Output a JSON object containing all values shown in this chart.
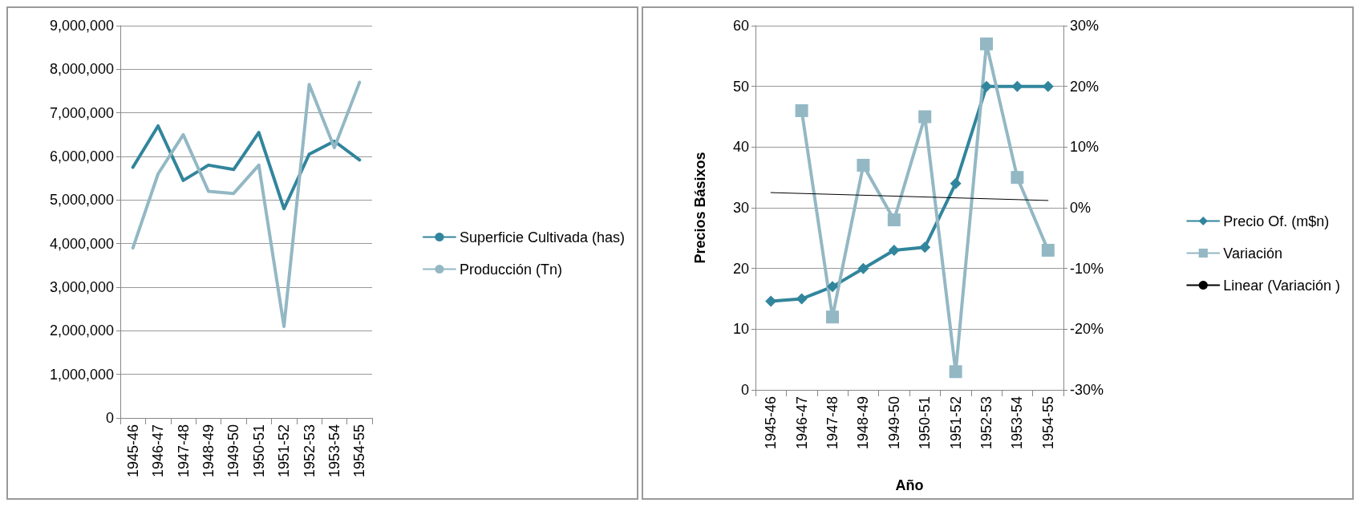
{
  "chart_data": [
    {
      "type": "line",
      "categories": [
        "1945-46",
        "1946-47",
        "1947-48",
        "1948-49",
        "1949-50",
        "1950-51",
        "1951-52",
        "1952-53",
        "1953-54",
        "1954-55"
      ],
      "series": [
        {
          "name": "Superficie Cultivada (has)",
          "color": "#31859c",
          "values": [
            5750000,
            6700000,
            5450000,
            5800000,
            5700000,
            6550000,
            4800000,
            6050000,
            6350000,
            5920000
          ]
        },
        {
          "name": "Producción (Tn)",
          "color": "#93b8c4",
          "values": [
            3900000,
            5600000,
            6500000,
            5200000,
            5150000,
            5800000,
            2100000,
            7650000,
            6200000,
            7700000
          ]
        }
      ],
      "ylim": [
        0,
        9000000
      ],
      "yticks": [
        {
          "value": 0,
          "label": "0"
        },
        {
          "value": 1000000,
          "label": "1,000,000"
        },
        {
          "value": 2000000,
          "label": "2,000,000"
        },
        {
          "value": 3000000,
          "label": "3,000,000"
        },
        {
          "value": 4000000,
          "label": "4,000,000"
        },
        {
          "value": 5000000,
          "label": "5,000,000"
        },
        {
          "value": 6000000,
          "label": "6,000,000"
        },
        {
          "value": 7000000,
          "label": "7,000,000"
        },
        {
          "value": 8000000,
          "label": "8,000,000"
        },
        {
          "value": 9000000,
          "label": "9,000,000"
        }
      ],
      "grid": "y",
      "legend": "right",
      "marker": "none"
    },
    {
      "type": "line",
      "xlabel": "Año",
      "ylabel": "Precios Básixos",
      "categories": [
        "1945-46",
        "1946-47",
        "1947-48",
        "1948-49",
        "1949-50",
        "1950-51",
        "1951-52",
        "1952-53",
        "1953-54",
        "1954-55"
      ],
      "series": [
        {
          "name": "Precio Of. (m$n)",
          "color": "#31859c",
          "marker": "diamond",
          "values": [
            14.6,
            15,
            17,
            20,
            23,
            23.5,
            34,
            50,
            50,
            50
          ]
        },
        {
          "name": "Variación",
          "color": "#93b8c4",
          "marker": "square",
          "axis": "y2",
          "values": [
            null,
            16,
            -18,
            7,
            -2,
            15,
            -27,
            27,
            5,
            -7
          ]
        },
        {
          "name": "Linear (Variación )",
          "color": "#000000",
          "marker": "none",
          "axis": "y2",
          "x": [
            "1945-46",
            "1954-55"
          ],
          "values": [
            2.5,
            1.2
          ]
        }
      ],
      "ylim": [
        0,
        60
      ],
      "yticks": [
        0,
        10,
        20,
        30,
        40,
        50,
        60
      ],
      "y2lim": [
        -30,
        30
      ],
      "y2ticks": [
        {
          "value": -30,
          "label": "-30%"
        },
        {
          "value": -20,
          "label": "-20%"
        },
        {
          "value": -10,
          "label": "-10%"
        },
        {
          "value": 0,
          "label": "0%"
        },
        {
          "value": 10,
          "label": "10%"
        },
        {
          "value": 20,
          "label": "20%"
        },
        {
          "value": 30,
          "label": "30%"
        }
      ],
      "grid": "y",
      "legend": "right"
    }
  ]
}
